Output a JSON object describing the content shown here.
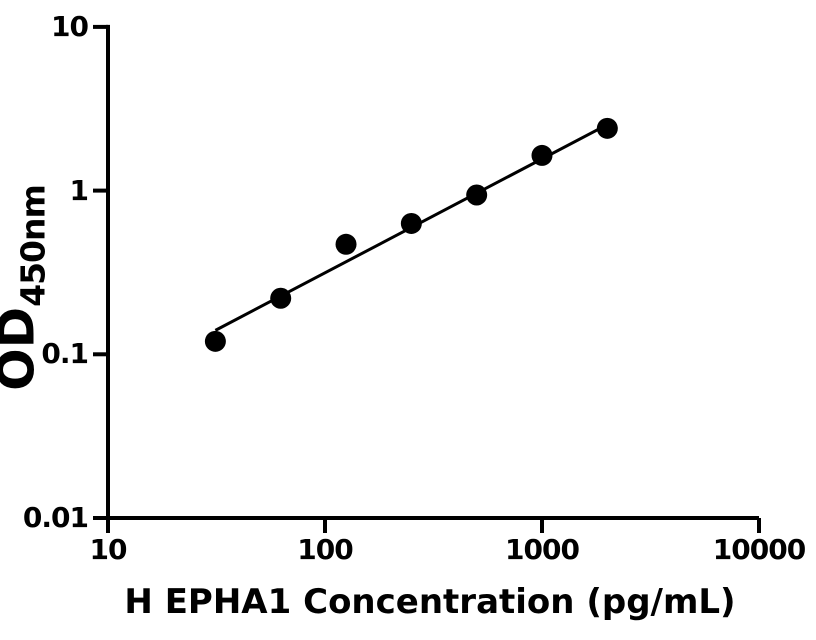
{
  "chart_data": {
    "type": "scatter",
    "title": "",
    "xlabel": "H EPHA1 Concentration (pg/mL)",
    "ylabel_main": "OD",
    "ylabel_sub": "450nm",
    "x_scale": "log",
    "y_scale": "log",
    "xlim": [
      10,
      10000
    ],
    "ylim": [
      0.01,
      10
    ],
    "grid": false,
    "legend": "none",
    "x_ticks": [
      {
        "value": 10,
        "label": "10"
      },
      {
        "value": 100,
        "label": "100"
      },
      {
        "value": 1000,
        "label": "1000"
      },
      {
        "value": 10000,
        "label": "10000"
      }
    ],
    "y_ticks": [
      {
        "value": 10,
        "label": "10"
      },
      {
        "value": 1,
        "label": "1"
      },
      {
        "value": 0.1,
        "label": "0.1"
      },
      {
        "value": 0.01,
        "label": "0.01"
      }
    ],
    "series": [
      {
        "name": "standard-curve-points",
        "marker": "filled-circle",
        "x": [
          31.25,
          62.5,
          125,
          250,
          500,
          1000,
          2000
        ],
        "y": [
          0.12,
          0.22,
          0.47,
          0.63,
          0.94,
          1.64,
          2.4
        ]
      }
    ],
    "fit_line": {
      "name": "fitted-standard-curve-line",
      "x": [
        31.25,
        2000
      ],
      "y": [
        0.14,
        2.53
      ]
    },
    "colors": {
      "ink": "#000000",
      "background": "#ffffff"
    }
  }
}
